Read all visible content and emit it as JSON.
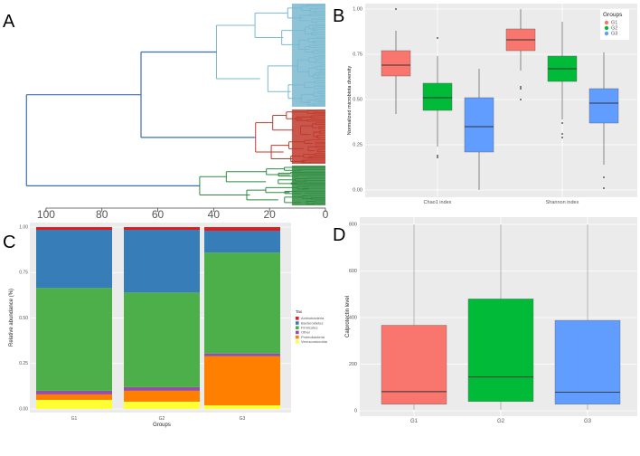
{
  "chart_data": [
    {
      "type": "dendrogram",
      "panel": "A",
      "x_ticks": [
        100,
        80,
        60,
        40,
        20,
        0
      ],
      "xlim": [
        110,
        0
      ],
      "clusters": [
        {
          "name": "cluster-top",
          "color": "#7ab9d0",
          "join_height": 39
        },
        {
          "name": "cluster-middle",
          "color": "#c0392b",
          "join_height": 25
        },
        {
          "name": "cluster-bottom",
          "color": "#2e8b3f",
          "join_height": 45
        }
      ],
      "root_height": 107,
      "second_join_height": 66
    },
    {
      "type": "boxplot",
      "panel": "B",
      "ylabel": "Normalized microbiota diversity",
      "ylim": [
        0,
        1.0
      ],
      "y_ticks": [
        "0.00",
        "0.25",
        "0.50",
        "0.75",
        "1.00"
      ],
      "categories": [
        "Chao1 index",
        "Shannon index"
      ],
      "legend_title": "Groups",
      "series": [
        {
          "name": "G1",
          "color": "#f8766d",
          "boxes": [
            {
              "min": 0.42,
              "q1": 0.63,
              "median": 0.69,
              "q3": 0.77,
              "max": 0.88,
              "outliers": [
                1.0
              ]
            },
            {
              "min": 0.66,
              "q1": 0.77,
              "median": 0.83,
              "q3": 0.89,
              "max": 1.0,
              "outliers": [
                0.57,
                0.56,
                0.5
              ]
            }
          ]
        },
        {
          "name": "G2",
          "color": "#00ba38",
          "boxes": [
            {
              "min": 0.24,
              "q1": 0.44,
              "median": 0.51,
              "q3": 0.59,
              "max": 0.74,
              "outliers": [
                0.84,
                0.19,
                0.18
              ]
            },
            {
              "min": 0.39,
              "q1": 0.6,
              "median": 0.67,
              "q3": 0.74,
              "max": 0.93,
              "outliers": [
                0.37,
                0.31,
                0.29
              ]
            }
          ]
        },
        {
          "name": "G3",
          "color": "#619cff",
          "boxes": [
            {
              "min": 0.0,
              "q1": 0.21,
              "median": 0.35,
              "q3": 0.51,
              "max": 0.67,
              "outliers": []
            },
            {
              "min": 0.14,
              "q1": 0.37,
              "median": 0.48,
              "q3": 0.56,
              "max": 0.76,
              "outliers": [
                0.07,
                0.01
              ]
            }
          ]
        }
      ]
    },
    {
      "type": "stacked_bar",
      "panel": "C",
      "xlabel": "Groups",
      "ylabel": "Relative abundance (%)",
      "ylim": [
        0,
        1.0
      ],
      "y_ticks": [
        "0.00",
        "0.25",
        "0.50",
        "0.75",
        "1.00"
      ],
      "categories": [
        "G1",
        "G2",
        "G3"
      ],
      "legend_title": "Tax",
      "series": [
        {
          "name": "Verrucomicrobia",
          "color": "#ffff33",
          "values": [
            0.05,
            0.04,
            0.02
          ]
        },
        {
          "name": "Proteobacteria",
          "color": "#ff7f00",
          "values": [
            0.03,
            0.06,
            0.27
          ]
        },
        {
          "name": "Other",
          "color": "#984ea3",
          "values": [
            0.02,
            0.02,
            0.015
          ]
        },
        {
          "name": "Firmicutes",
          "color": "#4daf4a",
          "values": [
            0.565,
            0.52,
            0.555
          ]
        },
        {
          "name": "Bacteroidetes",
          "color": "#377eb8",
          "values": [
            0.32,
            0.345,
            0.12
          ]
        },
        {
          "name": "Actinobacteria",
          "color": "#e41a1c",
          "values": [
            0.015,
            0.015,
            0.02
          ]
        }
      ],
      "legend_order": [
        "Actinobacteria",
        "Bacteroidetes",
        "Firmicutes",
        "Other",
        "Proteobacteria",
        "Verrucomicrobia"
      ]
    },
    {
      "type": "boxplot",
      "panel": "D",
      "ylabel": "Calprotectin level",
      "ylim": [
        0,
        800
      ],
      "y_ticks": [
        "0",
        "200",
        "400",
        "600",
        "800"
      ],
      "categories": [
        "G1",
        "G2",
        "G3"
      ],
      "boxes": [
        {
          "name": "G1",
          "color": "#f8766d",
          "min": 5,
          "q1": 28,
          "median": 82,
          "q3": 367,
          "max": 800
        },
        {
          "name": "G2",
          "color": "#00ba38",
          "min": 5,
          "q1": 40,
          "median": 145,
          "q3": 480,
          "max": 800
        },
        {
          "name": "G3",
          "color": "#619cff",
          "min": 5,
          "q1": 28,
          "median": 80,
          "q3": 388,
          "max": 800
        }
      ]
    }
  ]
}
